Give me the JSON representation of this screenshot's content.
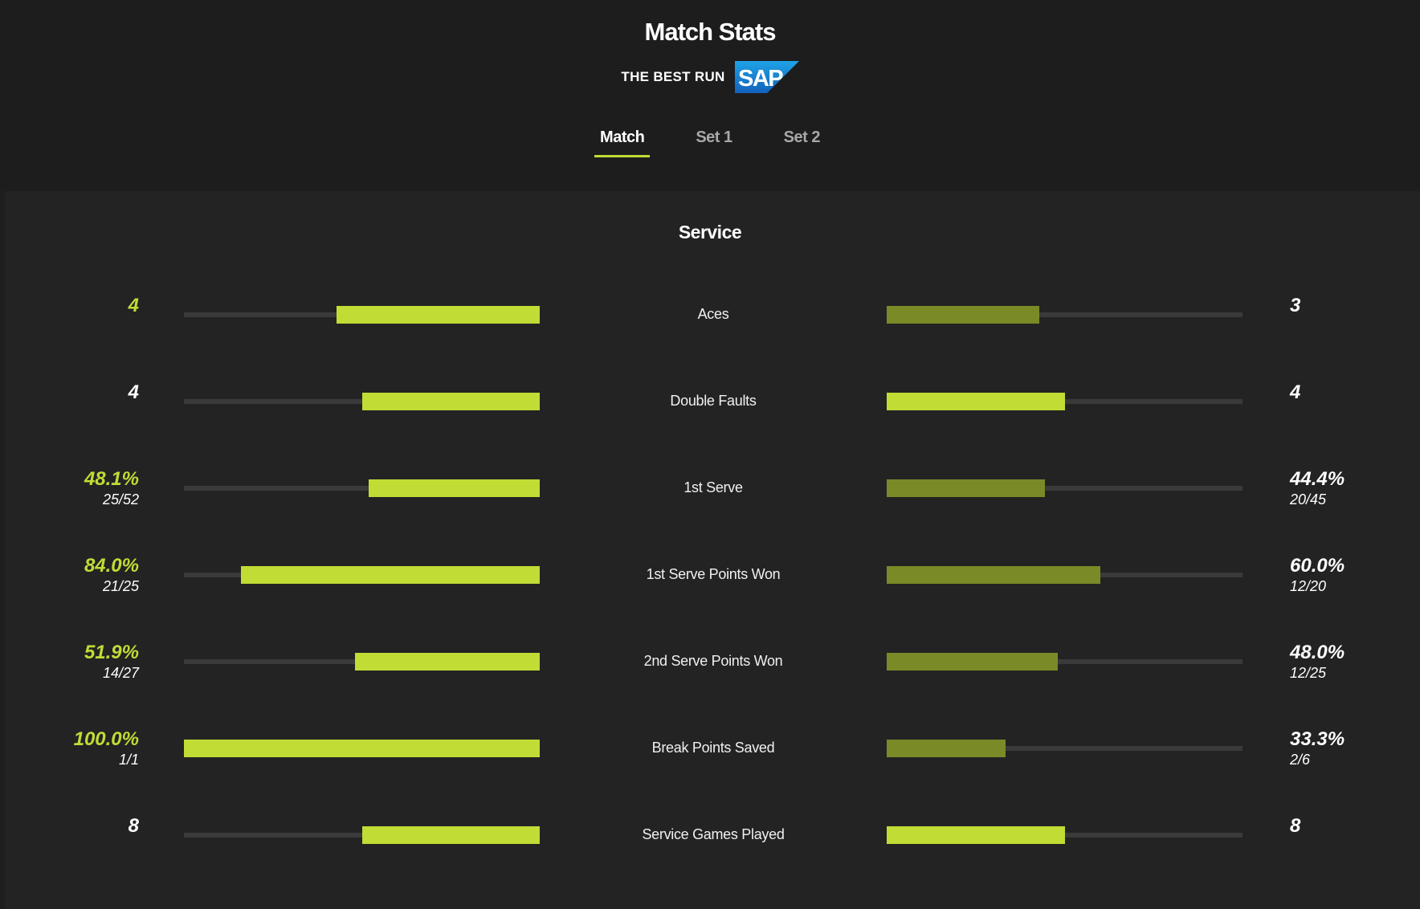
{
  "header": {
    "title": "Match Stats",
    "sponsor_text": "THE BEST RUN",
    "logo_text": "SAP",
    "tabs": [
      {
        "label": "Match",
        "active": true
      },
      {
        "label": "Set 1",
        "active": false
      },
      {
        "label": "Set 2",
        "active": false
      }
    ]
  },
  "colors": {
    "accent": "#c0dc35",
    "accent_dim": "#7a8a27",
    "track": "#3a3a3a",
    "background": "#232323"
  },
  "section": {
    "title": "Service",
    "stats": [
      {
        "label": "Aces",
        "left": {
          "value": "4",
          "sub": "",
          "share": 0.571,
          "lead": true
        },
        "right": {
          "value": "3",
          "sub": "",
          "share": 0.429,
          "lead": false
        }
      },
      {
        "label": "Double Faults",
        "left": {
          "value": "4",
          "sub": "",
          "share": 0.5,
          "lead": false
        },
        "right": {
          "value": "4",
          "sub": "",
          "share": 0.5,
          "lead": false
        }
      },
      {
        "label": "1st Serve",
        "left": {
          "value": "48.1%",
          "sub": "25/52",
          "share": 0.481,
          "lead": true
        },
        "right": {
          "value": "44.4%",
          "sub": "20/45",
          "share": 0.444,
          "lead": false
        }
      },
      {
        "label": "1st Serve Points Won",
        "left": {
          "value": "84.0%",
          "sub": "21/25",
          "share": 0.84,
          "lead": true
        },
        "right": {
          "value": "60.0%",
          "sub": "12/20",
          "share": 0.6,
          "lead": false
        }
      },
      {
        "label": "2nd Serve Points Won",
        "left": {
          "value": "51.9%",
          "sub": "14/27",
          "share": 0.519,
          "lead": true
        },
        "right": {
          "value": "48.0%",
          "sub": "12/25",
          "share": 0.48,
          "lead": false
        }
      },
      {
        "label": "Break Points Saved",
        "left": {
          "value": "100.0%",
          "sub": "1/1",
          "share": 1.0,
          "lead": true
        },
        "right": {
          "value": "33.3%",
          "sub": "2/6",
          "share": 0.333,
          "lead": false
        }
      },
      {
        "label": "Service Games Played",
        "left": {
          "value": "8",
          "sub": "",
          "share": 0.5,
          "lead": false
        },
        "right": {
          "value": "8",
          "sub": "",
          "share": 0.5,
          "lead": false
        }
      }
    ]
  }
}
